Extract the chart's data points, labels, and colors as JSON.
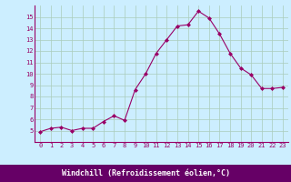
{
  "x": [
    0,
    1,
    2,
    3,
    4,
    5,
    6,
    7,
    8,
    9,
    10,
    11,
    12,
    13,
    14,
    15,
    16,
    17,
    18,
    19,
    20,
    21,
    22,
    23
  ],
  "y": [
    4.9,
    5.2,
    5.3,
    5.0,
    5.2,
    5.2,
    5.8,
    6.3,
    5.9,
    8.6,
    10.0,
    11.8,
    13.0,
    14.2,
    14.3,
    15.5,
    14.9,
    13.5,
    11.8,
    10.5,
    9.9,
    8.7,
    8.7,
    8.8
  ],
  "xlabel": "Windchill (Refroidissement éolien,°C)",
  "ylim": [
    4,
    16
  ],
  "xlim_min": -0.5,
  "xlim_max": 23.5,
  "yticks": [
    5,
    6,
    7,
    8,
    9,
    10,
    11,
    12,
    13,
    14,
    15
  ],
  "xticks": [
    0,
    1,
    2,
    3,
    4,
    5,
    6,
    7,
    8,
    9,
    10,
    11,
    12,
    13,
    14,
    15,
    16,
    17,
    18,
    19,
    20,
    21,
    22,
    23
  ],
  "line_color": "#990066",
  "marker": "D",
  "marker_size": 2.0,
  "bg_color": "#cceeff",
  "grid_color": "#aaccbb",
  "xlabel_color": "#ffffff",
  "xlabel_bg": "#660066",
  "tick_color": "#990066",
  "tick_fontsize": 5.0,
  "ylabel_fontsize": 5.0,
  "xlabel_fontsize": 6.0
}
